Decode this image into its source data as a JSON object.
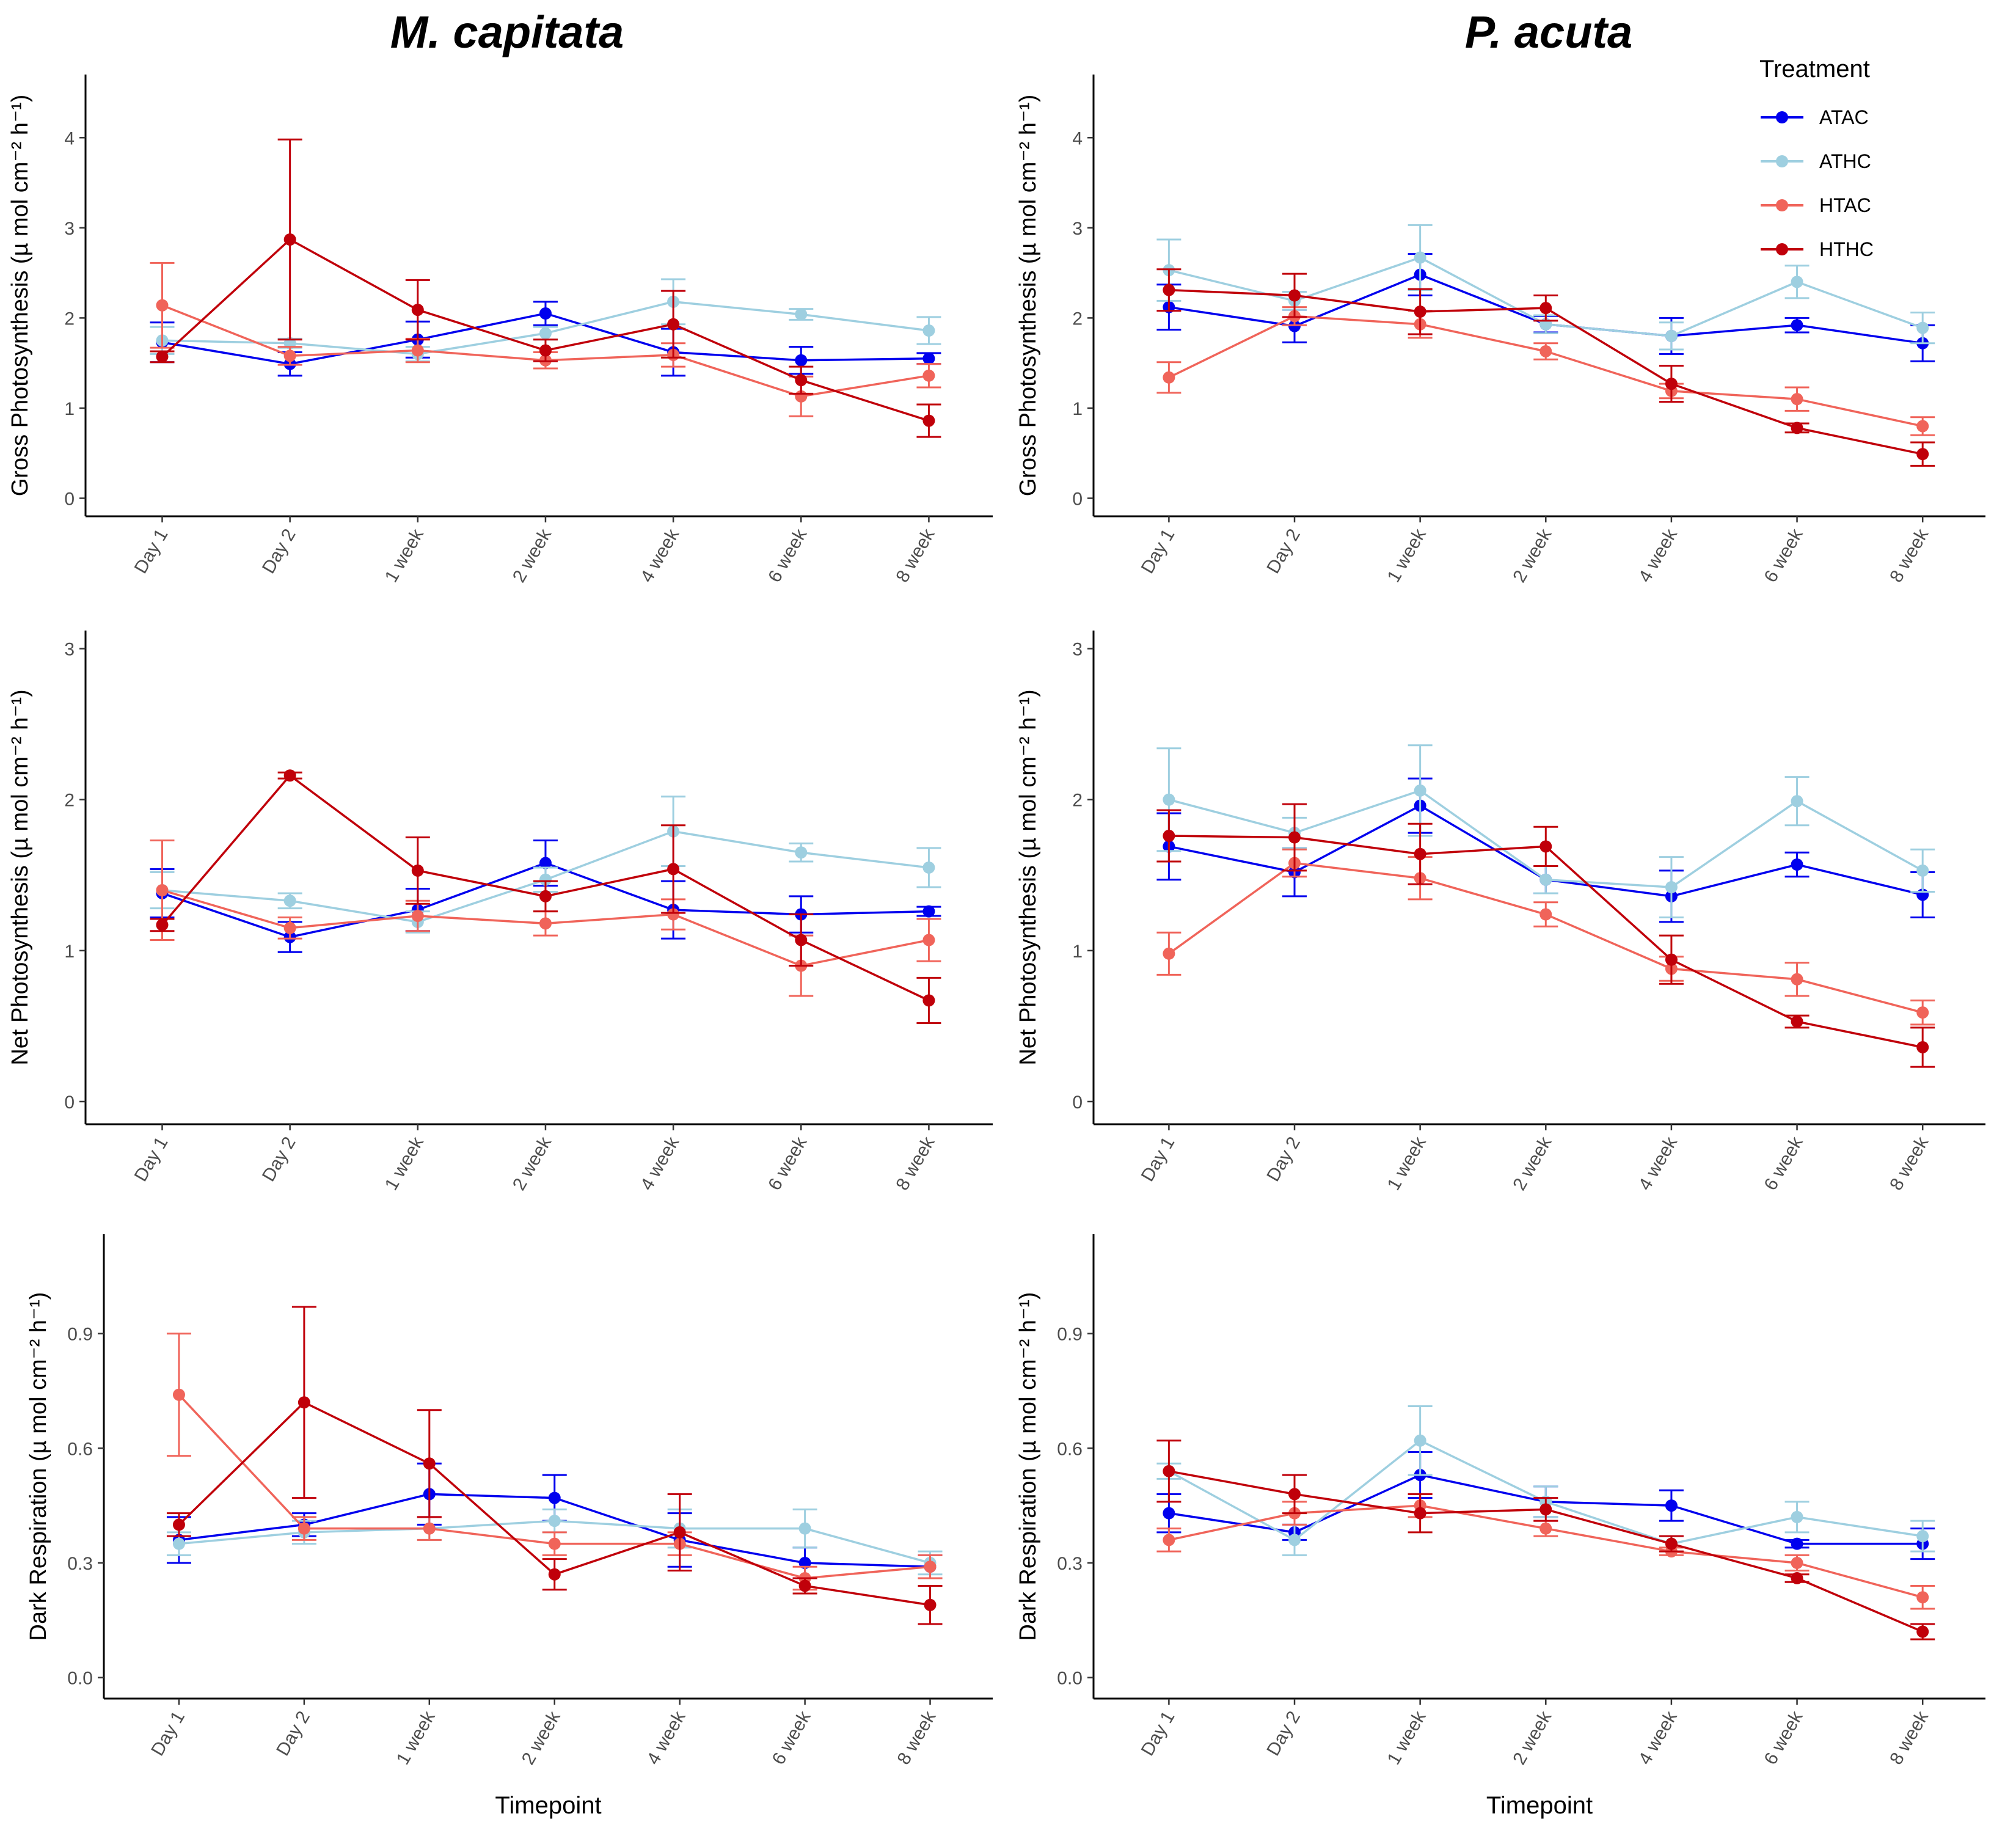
{
  "figure": {
    "column_titles": [
      "M. capitata",
      "P. acuta"
    ],
    "legend_title": "Treatment",
    "x_title": "Timepoint"
  },
  "series_meta": [
    {
      "name": "ATAC",
      "color": "#0000ee"
    },
    {
      "name": "ATHC",
      "color": "#9ecfe0"
    },
    {
      "name": "HTAC",
      "color": "#f0645a"
    },
    {
      "name": "HTHC",
      "color": "#c0000a"
    }
  ],
  "chart_data": [
    {
      "type": "line",
      "title": "M. capitata",
      "categories": [
        "Day 1",
        "Day 2",
        "1 week",
        "2 week",
        "4 week",
        "6 week",
        "8 week"
      ],
      "xlabel": "",
      "ylabel": "Gross Photosynthesis (µ mol cm⁻² h⁻¹)",
      "yticks": [
        0,
        1,
        2,
        3,
        4
      ],
      "ylim": [
        -0.2,
        4.7
      ],
      "series": [
        {
          "name": "ATAC",
          "values": [
            1.73,
            1.49,
            1.76,
            2.05,
            1.62,
            1.53,
            1.55
          ],
          "err": [
            0.22,
            0.13,
            0.2,
            0.13,
            0.26,
            0.15,
            0.06
          ]
        },
        {
          "name": "ATHC",
          "values": [
            1.75,
            1.72,
            1.6,
            1.83,
            2.18,
            2.04,
            1.86
          ],
          "err": [
            0.15,
            0.05,
            0.08,
            0.07,
            0.25,
            0.06,
            0.15
          ]
        },
        {
          "name": "HTAC",
          "values": [
            2.14,
            1.58,
            1.64,
            1.53,
            1.59,
            1.13,
            1.36
          ],
          "err": [
            0.47,
            0.1,
            0.13,
            0.09,
            0.13,
            0.22,
            0.13
          ]
        },
        {
          "name": "HTHC",
          "values": [
            1.57,
            2.87,
            2.09,
            1.64,
            1.93,
            1.31,
            0.86
          ],
          "err": [
            0.06,
            1.11,
            0.33,
            0.12,
            0.37,
            0.15,
            0.18
          ]
        }
      ]
    },
    {
      "type": "line",
      "title": "P. acuta",
      "categories": [
        "Day 1",
        "Day 2",
        "1 week",
        "2 week",
        "4 week",
        "6 week",
        "8 week"
      ],
      "xlabel": "",
      "ylabel": "Gross Photosynthesis (µ mol cm⁻² h⁻¹)",
      "yticks": [
        0,
        1,
        2,
        3,
        4
      ],
      "ylim": [
        -0.2,
        4.7
      ],
      "series": [
        {
          "name": "ATAC",
          "values": [
            2.12,
            1.91,
            2.48,
            1.93,
            1.8,
            1.92,
            1.72
          ],
          "err": [
            0.25,
            0.18,
            0.23,
            0.09,
            0.2,
            0.08,
            0.2
          ]
        },
        {
          "name": "ATHC",
          "values": [
            2.53,
            2.19,
            2.67,
            1.93,
            1.8,
            2.4,
            1.89
          ],
          "err": [
            0.34,
            0.1,
            0.36,
            0.1,
            0.15,
            0.18,
            0.17
          ]
        },
        {
          "name": "HTAC",
          "values": [
            1.34,
            2.02,
            1.93,
            1.63,
            1.19,
            1.1,
            0.8
          ],
          "err": [
            0.17,
            0.1,
            0.15,
            0.09,
            0.08,
            0.13,
            0.1
          ]
        },
        {
          "name": "HTHC",
          "values": [
            2.31,
            2.25,
            2.07,
            2.11,
            1.27,
            0.78,
            0.49
          ],
          "err": [
            0.23,
            0.24,
            0.25,
            0.14,
            0.2,
            0.05,
            0.13
          ]
        }
      ]
    },
    {
      "type": "line",
      "title": "",
      "categories": [
        "Day 1",
        "Day 2",
        "1 week",
        "2 week",
        "4 week",
        "6 week",
        "8 week"
      ],
      "xlabel": "",
      "ylabel": "Net Photosynthesis (µ mol cm⁻² h⁻¹)",
      "yticks": [
        0,
        1,
        2,
        3
      ],
      "ylim": [
        -0.15,
        3.12
      ],
      "series": [
        {
          "name": "ATAC",
          "values": [
            1.38,
            1.09,
            1.27,
            1.58,
            1.27,
            1.24,
            1.26
          ],
          "err": [
            0.16,
            0.1,
            0.14,
            0.15,
            0.19,
            0.12,
            0.03
          ]
        },
        {
          "name": "ATHC",
          "values": [
            1.4,
            1.33,
            1.19,
            1.47,
            1.79,
            1.65,
            1.55
          ],
          "err": [
            0.12,
            0.05,
            0.07,
            0.08,
            0.23,
            0.06,
            0.13
          ]
        },
        {
          "name": "HTAC",
          "values": [
            1.4,
            1.15,
            1.23,
            1.18,
            1.24,
            0.9,
            1.07
          ],
          "err": [
            0.33,
            0.07,
            0.1,
            0.08,
            0.1,
            0.2,
            0.14
          ]
        },
        {
          "name": "HTHC",
          "values": [
            1.17,
            2.16,
            1.53,
            1.36,
            1.54,
            1.07,
            0.67
          ],
          "err": [
            0.04,
            0.02,
            0.22,
            0.1,
            0.29,
            0.17,
            0.15
          ]
        }
      ]
    },
    {
      "type": "line",
      "title": "",
      "categories": [
        "Day 1",
        "Day 2",
        "1 week",
        "2 week",
        "4 week",
        "6 week",
        "8 week"
      ],
      "xlabel": "",
      "ylabel": "Net Photosynthesis (µ mol cm⁻² h⁻¹)",
      "yticks": [
        0,
        1,
        2,
        3
      ],
      "ylim": [
        -0.15,
        3.12
      ],
      "series": [
        {
          "name": "ATAC",
          "values": [
            1.69,
            1.52,
            1.96,
            1.47,
            1.36,
            1.57,
            1.37
          ],
          "err": [
            0.22,
            0.16,
            0.18,
            0.09,
            0.17,
            0.08,
            0.15
          ]
        },
        {
          "name": "ATHC",
          "values": [
            2.0,
            1.78,
            2.06,
            1.47,
            1.42,
            1.99,
            1.53
          ],
          "err": [
            0.34,
            0.1,
            0.3,
            0.09,
            0.2,
            0.16,
            0.14
          ]
        },
        {
          "name": "HTAC",
          "values": [
            0.98,
            1.58,
            1.48,
            1.24,
            0.88,
            0.81,
            0.59
          ],
          "err": [
            0.14,
            0.09,
            0.14,
            0.08,
            0.08,
            0.11,
            0.08
          ]
        },
        {
          "name": "HTHC",
          "values": [
            1.76,
            1.75,
            1.64,
            1.69,
            0.94,
            0.53,
            0.36
          ],
          "err": [
            0.17,
            0.22,
            0.2,
            0.13,
            0.16,
            0.04,
            0.13
          ]
        }
      ]
    },
    {
      "type": "line",
      "title": "",
      "categories": [
        "Day 1",
        "Day 2",
        "1 week",
        "2 week",
        "4 week",
        "6 week",
        "8 week"
      ],
      "xlabel": "Timepoint",
      "ylabel": "Dark Respiration (µ mol cm⁻² h⁻¹)",
      "yticks": [
        0.0,
        0.3,
        0.6,
        0.9
      ],
      "yticklabels": [
        "0.0",
        "0.3",
        "0.6",
        "0.9"
      ],
      "ylim": [
        -0.055,
        1.16
      ],
      "series": [
        {
          "name": "ATAC",
          "values": [
            0.36,
            0.4,
            0.48,
            0.47,
            0.36,
            0.3,
            0.29
          ],
          "err": [
            0.06,
            0.03,
            0.08,
            0.06,
            0.07,
            0.04,
            0.03
          ]
        },
        {
          "name": "ATHC",
          "values": [
            0.35,
            0.38,
            0.39,
            0.41,
            0.39,
            0.39,
            0.3
          ],
          "err": [
            0.03,
            0.03,
            0.03,
            0.03,
            0.05,
            0.05,
            0.03
          ]
        },
        {
          "name": "HTAC",
          "values": [
            0.74,
            0.39,
            0.39,
            0.35,
            0.35,
            0.26,
            0.29
          ],
          "err": [
            0.16,
            0.03,
            0.03,
            0.03,
            0.03,
            0.03,
            0.03
          ]
        },
        {
          "name": "HTHC",
          "values": [
            0.4,
            0.72,
            0.56,
            0.27,
            0.38,
            0.24,
            0.19
          ],
          "err": [
            0.03,
            0.25,
            0.14,
            0.04,
            0.1,
            0.02,
            0.05
          ]
        }
      ]
    },
    {
      "type": "line",
      "title": "",
      "categories": [
        "Day 1",
        "Day 2",
        "1 week",
        "2 week",
        "4 week",
        "6 week",
        "8 week"
      ],
      "xlabel": "Timepoint",
      "ylabel": "Dark Respiration (µ mol cm⁻² h⁻¹)",
      "yticks": [
        0.0,
        0.3,
        0.6,
        0.9
      ],
      "yticklabels": [
        "0.0",
        "0.3",
        "0.6",
        "0.9"
      ],
      "ylim": [
        -0.055,
        1.16
      ],
      "series": [
        {
          "name": "ATAC",
          "values": [
            0.43,
            0.38,
            0.53,
            0.46,
            0.45,
            0.35,
            0.35
          ],
          "err": [
            0.05,
            0.02,
            0.06,
            0.04,
            0.04,
            0.01,
            0.04
          ]
        },
        {
          "name": "ATHC",
          "values": [
            0.54,
            0.36,
            0.62,
            0.46,
            0.35,
            0.42,
            0.37
          ],
          "err": [
            0.02,
            0.04,
            0.09,
            0.04,
            0.02,
            0.04,
            0.04
          ]
        },
        {
          "name": "HTAC",
          "values": [
            0.36,
            0.43,
            0.45,
            0.39,
            0.33,
            0.3,
            0.21
          ],
          "err": [
            0.03,
            0.03,
            0.03,
            0.02,
            0.01,
            0.02,
            0.03
          ]
        },
        {
          "name": "HTHC",
          "values": [
            0.54,
            0.48,
            0.43,
            0.44,
            0.35,
            0.26,
            0.12
          ],
          "err": [
            0.08,
            0.05,
            0.05,
            0.03,
            0.02,
            0.01,
            0.02
          ]
        }
      ]
    }
  ]
}
